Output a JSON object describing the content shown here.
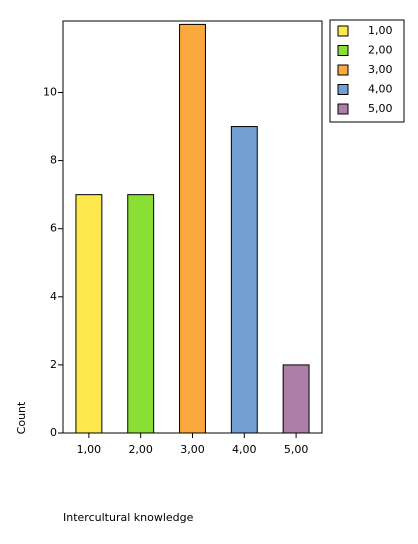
{
  "chart_data": {
    "type": "bar",
    "x_label": "Intercultural knowledge",
    "y_label": "Count",
    "categories": [
      "1,00",
      "2,00",
      "3,00",
      "4,00",
      "5,00"
    ],
    "values": [
      7,
      7,
      12,
      9,
      2
    ],
    "colors": [
      "#fde84d",
      "#8ade34",
      "#fba93e",
      "#749fd2",
      "#ad7fa8"
    ],
    "ylim": [
      0,
      12.1
    ],
    "yticks": [
      0,
      2,
      4,
      6,
      8,
      10
    ],
    "legend": "top-right"
  }
}
